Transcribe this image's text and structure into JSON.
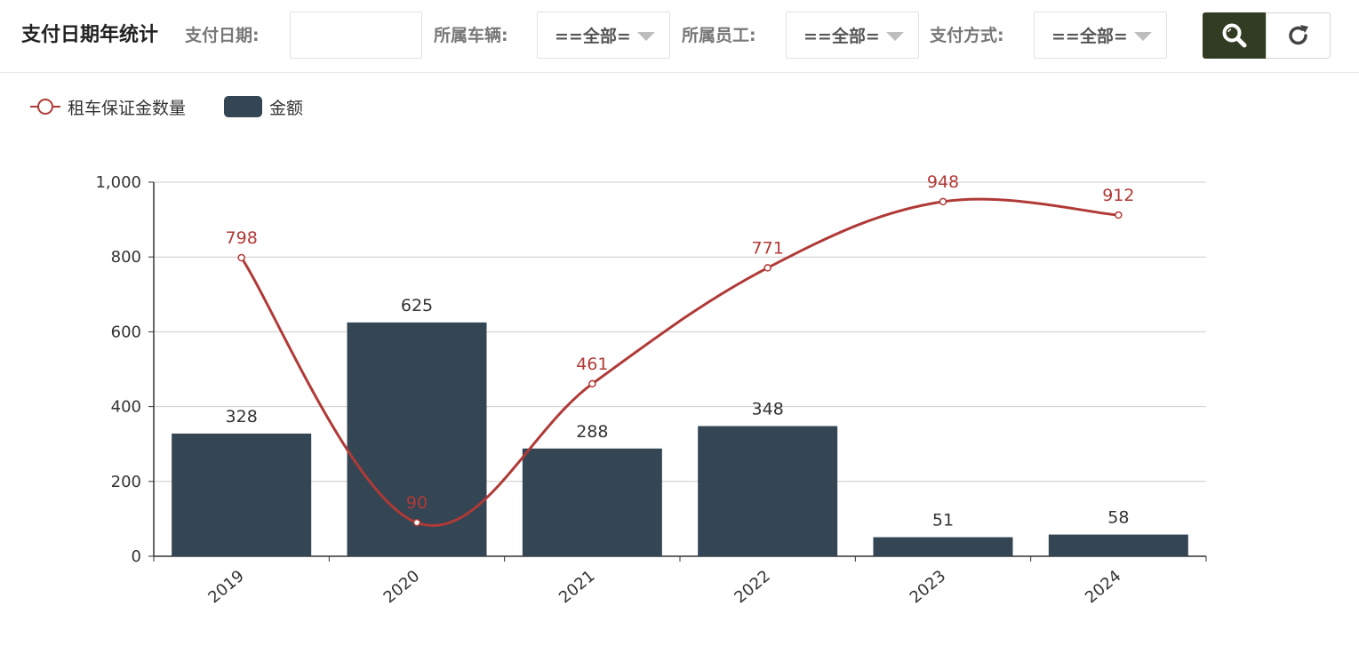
{
  "header": {
    "title": "支付日期年统计",
    "filters": {
      "date_label": "支付日期:",
      "date_value": "",
      "vehicle_label": "所属车辆:",
      "vehicle_value": "==全部=",
      "employee_label": "所属员工:",
      "employee_value": "==全部=",
      "payment_label": "支付方式:",
      "payment_value": "==全部="
    },
    "buttons": {
      "search_icon": "search-icon",
      "refresh_icon": "refresh-icon"
    }
  },
  "colors": {
    "bar": "#344554",
    "line": "#b03a37",
    "search_button": "#323c22"
  },
  "chart_data": {
    "type": "bar",
    "categories": [
      "2019",
      "2020",
      "2021",
      "2022",
      "2023",
      "2024"
    ],
    "series": [
      {
        "name": "金额",
        "type": "bar",
        "values": [
          328,
          625,
          288,
          348,
          51,
          58
        ]
      },
      {
        "name": "租车保证金数量",
        "type": "line",
        "smooth": true,
        "values": [
          798,
          90,
          461,
          771,
          948,
          912
        ]
      }
    ],
    "ylim": [
      0,
      1000
    ],
    "yticks": [
      "0",
      "200",
      "400",
      "600",
      "800",
      "1,000"
    ],
    "grid": true,
    "legend_position": "top-left"
  }
}
